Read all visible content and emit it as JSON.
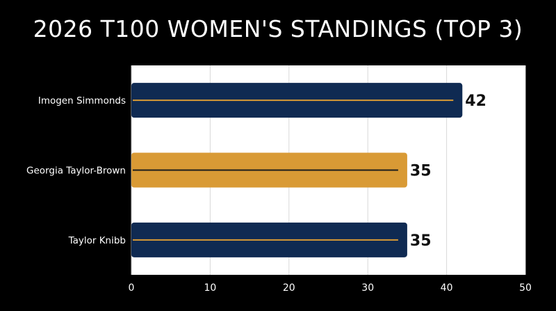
{
  "chart_data": {
    "type": "bar",
    "orientation": "horizontal",
    "title": "2026 T100 WOMEN'S STANDINGS (TOP 3)",
    "xlabel": "",
    "ylabel": "",
    "categories": [
      "Imogen Simmonds",
      "Georgia Taylor-Brown",
      "Taylor Knibb"
    ],
    "values": [
      42,
      35,
      35
    ],
    "bar_colors": [
      "#0f2a52",
      "#d99a35",
      "#0f2a52"
    ],
    "inner_line_colors": [
      "#d99a35",
      "#1c1c1c",
      "#d99a35"
    ],
    "xlim": [
      0,
      50
    ],
    "xticks": [
      0,
      10,
      20,
      30,
      40,
      50
    ],
    "grid": true,
    "legend": "none",
    "data_labels": true
  }
}
